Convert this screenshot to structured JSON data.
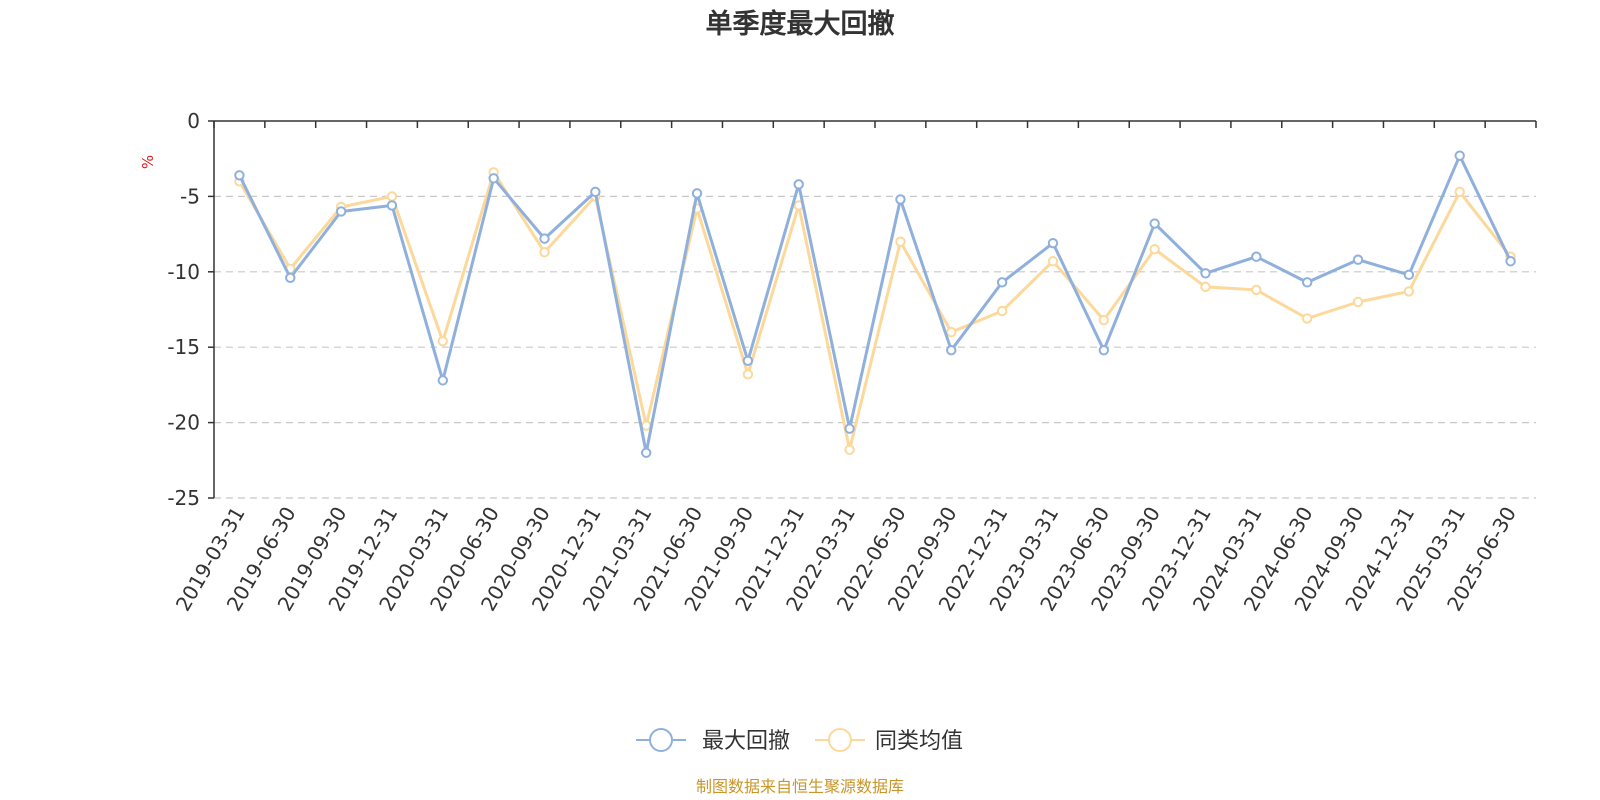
{
  "chart_data": {
    "type": "line",
    "title": "单季度最大回撤",
    "ylabel": "%",
    "ylim": [
      -25,
      0
    ],
    "yticks": [
      0,
      -5,
      -10,
      -15,
      -20,
      -25
    ],
    "grid": true,
    "legend_position": "bottom",
    "categories": [
      "2019-03-31",
      "2019-06-30",
      "2019-09-30",
      "2019-12-31",
      "2020-03-31",
      "2020-06-30",
      "2020-09-30",
      "2020-12-31",
      "2021-03-31",
      "2021-06-30",
      "2021-09-30",
      "2021-12-31",
      "2022-03-31",
      "2022-06-30",
      "2022-09-30",
      "2022-12-31",
      "2023-03-31",
      "2023-06-30",
      "2023-09-30",
      "2023-12-31",
      "2024-03-31",
      "2024-06-30",
      "2024-09-30",
      "2024-12-31",
      "2025-03-31",
      "2025-06-30"
    ],
    "series": [
      {
        "name": "最大回撤",
        "color": "#8fb0dd",
        "values": [
          -3.6,
          -10.4,
          -6.0,
          -5.6,
          -17.2,
          -3.8,
          -7.8,
          -4.7,
          -22.0,
          -4.8,
          -15.9,
          -4.2,
          -20.4,
          -5.2,
          -15.2,
          -10.7,
          -8.1,
          -15.2,
          -6.8,
          -10.1,
          -9.0,
          -10.7,
          -9.2,
          -10.2,
          -2.3,
          -9.3
        ]
      },
      {
        "name": "同类均值",
        "color": "#fcd89a",
        "values": [
          -4.0,
          -9.8,
          -5.7,
          -5.0,
          -14.6,
          -3.4,
          -8.7,
          -5.0,
          -20.2,
          -5.8,
          -16.8,
          -5.6,
          -21.8,
          -8.0,
          -14.0,
          -12.6,
          -9.3,
          -13.2,
          -8.5,
          -11.0,
          -11.2,
          -13.1,
          -12.0,
          -11.3,
          -4.7,
          -9.0
        ]
      }
    ],
    "axis_color": "#333333",
    "grid_color": "#c8c8c8",
    "unit_color": "#e02020"
  },
  "source": {
    "text": "制图数据来自恒生聚源数据库",
    "color": "#c8962a"
  }
}
